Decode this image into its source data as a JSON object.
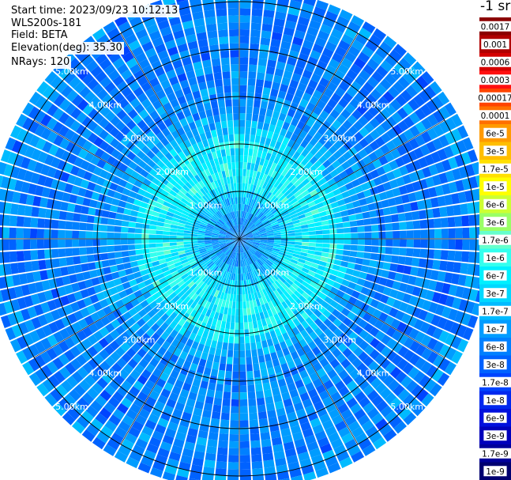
{
  "info": {
    "start_time": "Start time: 2023/09/23 10:12:13",
    "device": "WLS200s-181",
    "field": "Field: BETA",
    "elevation": "Elevation(deg): 35.30",
    "nrays": "NRays: 120"
  },
  "colorbar": {
    "unit_label": "-1 sr",
    "labels": [
      "0.0017",
      "0.001",
      "0.0006",
      "0.0003",
      "0.00017",
      "0.0001",
      "6e-5",
      "3e-5",
      "1.7e-5",
      "1e-5",
      "6e-6",
      "3e-6",
      "1.7e-6",
      "1e-6",
      "6e-7",
      "3e-7",
      "1.7e-7",
      "1e-7",
      "6e-8",
      "3e-8",
      "1.7e-8",
      "1e-8",
      "6e-9",
      "3e-9",
      "1.7e-9",
      "1e-9"
    ],
    "colors": [
      "#8b0000",
      "#b00000",
      "#d40000",
      "#ff1010",
      "#ff4400",
      "#ff7000",
      "#ff9a00",
      "#ffbe00",
      "#ffe000",
      "#ffff00",
      "#ccff33",
      "#99ff66",
      "#66ffcc",
      "#33ffee",
      "#00f0ff",
      "#00d8ff",
      "#00bbff",
      "#009cff",
      "#0080ff",
      "#0062ff",
      "#0044ff",
      "#0028ee",
      "#0010dd",
      "#0000bb",
      "#00009a",
      "#000070"
    ]
  },
  "chart_data": {
    "type": "heatmap",
    "projection": "polar",
    "n_rays": 120,
    "max_range_km": 5.3,
    "range_rings_km": [
      1,
      2,
      3,
      4,
      5
    ],
    "ring_labels": [
      "1.00km",
      "2.00km",
      "3.00km",
      "4.00km",
      "5.00km"
    ],
    "radial_lines_deg": [
      0,
      30,
      60,
      90,
      120,
      150,
      180,
      210,
      240,
      270,
      300,
      330
    ],
    "value_profile": [
      {
        "range_km": 0.0,
        "level": 18
      },
      {
        "range_km": 0.6,
        "level": 17
      },
      {
        "range_km": 1.2,
        "level": 14
      },
      {
        "range_km": 2.0,
        "level": 14
      },
      {
        "range_km": 2.5,
        "level": 17
      },
      {
        "range_km": 3.5,
        "level": 18
      },
      {
        "range_km": 5.3,
        "level": 18
      }
    ],
    "grid": true
  }
}
